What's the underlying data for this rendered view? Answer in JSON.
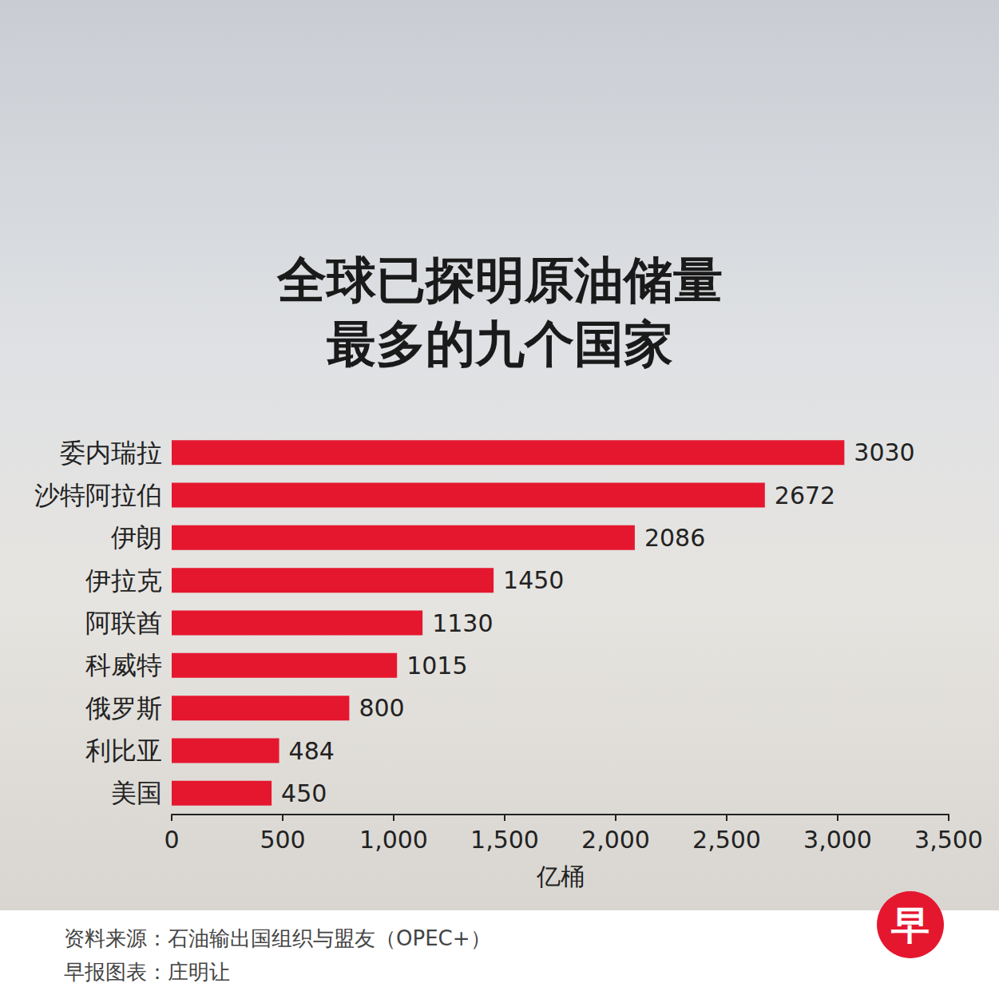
{
  "chart_data": {
    "type": "bar",
    "title": "全球已探明原油储量\n最多的九个国家",
    "orientation": "horizontal",
    "categories": [
      "委内瑞拉",
      "沙特阿拉伯",
      "伊朗",
      "伊拉克",
      "阿联酋",
      "科威特",
      "俄罗斯",
      "利比亚",
      "美国"
    ],
    "values": [
      3030,
      2672,
      2086,
      1450,
      1130,
      1015,
      800,
      484,
      450
    ],
    "color": "#e5172f",
    "x_label": "亿桶",
    "xlim": [
      0,
      3500
    ],
    "xticks": [
      0,
      500,
      1000,
      1500,
      2000,
      2500,
      3000,
      3500
    ],
    "grid": false,
    "data_labels": true,
    "source": "资料来源：石油输出国组织与盟友（OPEC+）",
    "credit": "早报图表：庄明让",
    "logo": "早"
  }
}
